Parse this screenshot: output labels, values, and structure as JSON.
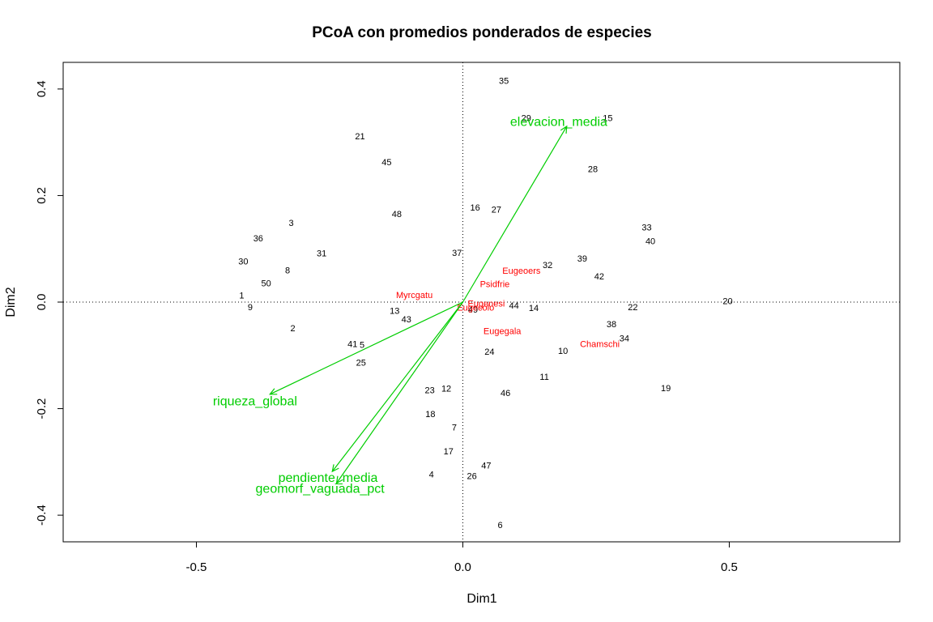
{
  "chart_data": {
    "type": "scatter",
    "title": "PCoA con promedios ponderados de especies",
    "xlabel": "Dim1",
    "ylabel": "Dim2",
    "xlim": [
      -0.75,
      0.82
    ],
    "ylim": [
      -0.45,
      0.45
    ],
    "x_ticks": [
      {
        "value": -0.5,
        "label": "-0.5"
      },
      {
        "value": 0.0,
        "label": "0.0"
      },
      {
        "value": 0.5,
        "label": "0.5"
      }
    ],
    "y_ticks": [
      {
        "value": -0.4,
        "label": "-0.4"
      },
      {
        "value": -0.2,
        "label": "-0.2"
      },
      {
        "value": 0.0,
        "label": "0.0"
      },
      {
        "value": 0.2,
        "label": "0.2"
      },
      {
        "value": 0.4,
        "label": "0.4"
      }
    ],
    "reference_lines": {
      "x": 0,
      "y": 0,
      "style": "dotted"
    },
    "sites": [
      {
        "label": "35",
        "x": 0.077,
        "y": 0.416
      },
      {
        "label": "29",
        "x": 0.119,
        "y": 0.346
      },
      {
        "label": "15",
        "x": 0.272,
        "y": 0.346
      },
      {
        "label": "21",
        "x": -0.193,
        "y": 0.312
      },
      {
        "label": "45",
        "x": -0.143,
        "y": 0.263
      },
      {
        "label": "28",
        "x": 0.244,
        "y": 0.25
      },
      {
        "label": "16",
        "x": 0.023,
        "y": 0.178
      },
      {
        "label": "27",
        "x": 0.063,
        "y": 0.174
      },
      {
        "label": "48",
        "x": -0.124,
        "y": 0.166
      },
      {
        "label": "3",
        "x": -0.322,
        "y": 0.149
      },
      {
        "label": "33",
        "x": 0.345,
        "y": 0.141
      },
      {
        "label": "36",
        "x": -0.384,
        "y": 0.12
      },
      {
        "label": "40",
        "x": 0.352,
        "y": 0.115
      },
      {
        "label": "31",
        "x": -0.265,
        "y": 0.092
      },
      {
        "label": "37",
        "x": -0.011,
        "y": 0.093
      },
      {
        "label": "39",
        "x": 0.224,
        "y": 0.082
      },
      {
        "label": "30",
        "x": -0.412,
        "y": 0.077
      },
      {
        "label": "32",
        "x": 0.159,
        "y": 0.07
      },
      {
        "label": "8",
        "x": -0.329,
        "y": 0.06
      },
      {
        "label": "42",
        "x": 0.256,
        "y": 0.049
      },
      {
        "label": "50",
        "x": -0.369,
        "y": 0.036
      },
      {
        "label": "1",
        "x": -0.415,
        "y": 0.013
      },
      {
        "label": "20",
        "x": 0.497,
        "y": 0.002
      },
      {
        "label": "9",
        "x": -0.399,
        "y": -0.009
      },
      {
        "label": "44",
        "x": 0.096,
        "y": -0.006
      },
      {
        "label": "14",
        "x": 0.133,
        "y": -0.011
      },
      {
        "label": "22",
        "x": 0.319,
        "y": -0.009
      },
      {
        "label": "49",
        "x": 0.019,
        "y": -0.014
      },
      {
        "label": "13",
        "x": -0.128,
        "y": -0.016
      },
      {
        "label": "43",
        "x": -0.106,
        "y": -0.032
      },
      {
        "label": "38",
        "x": 0.279,
        "y": -0.041
      },
      {
        "label": "2",
        "x": -0.319,
        "y": -0.049
      },
      {
        "label": "34",
        "x": 0.303,
        "y": -0.068
      },
      {
        "label": "41",
        "x": -0.207,
        "y": -0.078
      },
      {
        "label": "5",
        "x": -0.189,
        "y": -0.08
      },
      {
        "label": "10",
        "x": 0.188,
        "y": -0.091
      },
      {
        "label": "24",
        "x": 0.05,
        "y": -0.093
      },
      {
        "label": "25",
        "x": -0.191,
        "y": -0.113
      },
      {
        "label": "11",
        "x": 0.153,
        "y": -0.14
      },
      {
        "label": "19",
        "x": 0.381,
        "y": -0.161
      },
      {
        "label": "12",
        "x": -0.031,
        "y": -0.162
      },
      {
        "label": "23",
        "x": -0.062,
        "y": -0.165
      },
      {
        "label": "46",
        "x": 0.08,
        "y": -0.17
      },
      {
        "label": "18",
        "x": -0.061,
        "y": -0.21
      },
      {
        "label": "7",
        "x": -0.016,
        "y": -0.235
      },
      {
        "label": "17",
        "x": -0.027,
        "y": -0.28
      },
      {
        "label": "47",
        "x": 0.044,
        "y": -0.306
      },
      {
        "label": "4",
        "x": -0.059,
        "y": -0.323
      },
      {
        "label": "26",
        "x": 0.017,
        "y": -0.326
      },
      {
        "label": "6",
        "x": 0.07,
        "y": -0.418
      }
    ],
    "species": [
      {
        "label": "Myrcgatu",
        "x": -0.091,
        "y": 0.014
      },
      {
        "label": "Eugeoers",
        "x": 0.11,
        "y": 0.059
      },
      {
        "label": "Psidfrie",
        "x": 0.06,
        "y": 0.034
      },
      {
        "label": "Eugenesi",
        "x": 0.044,
        "y": -0.002
      },
      {
        "label": "Eugecolo",
        "x": 0.024,
        "y": -0.01
      },
      {
        "label": "Eugegala",
        "x": 0.074,
        "y": -0.054
      },
      {
        "label": "Chamschi",
        "x": 0.257,
        "y": -0.078
      }
    ],
    "vectors": [
      {
        "name": "elevacion_media",
        "x": 0.195,
        "y": 0.33,
        "label_x": 0.18,
        "label_y": 0.34
      },
      {
        "name": "riqueza_global",
        "x": -0.362,
        "y": -0.173,
        "label_x": -0.39,
        "label_y": -0.185
      },
      {
        "name": "pendiente_media",
        "x": -0.245,
        "y": -0.318,
        "label_x": -0.253,
        "label_y": -0.328
      },
      {
        "name": "geomorf_vaguada_pct",
        "x": -0.237,
        "y": -0.34,
        "label_x": -0.268,
        "label_y": -0.349
      }
    ],
    "colors": {
      "sites": "#000000",
      "species": "#ff0000",
      "vectors": "#00cd00",
      "frame": "#000000"
    },
    "grid": false,
    "legend": "none"
  }
}
